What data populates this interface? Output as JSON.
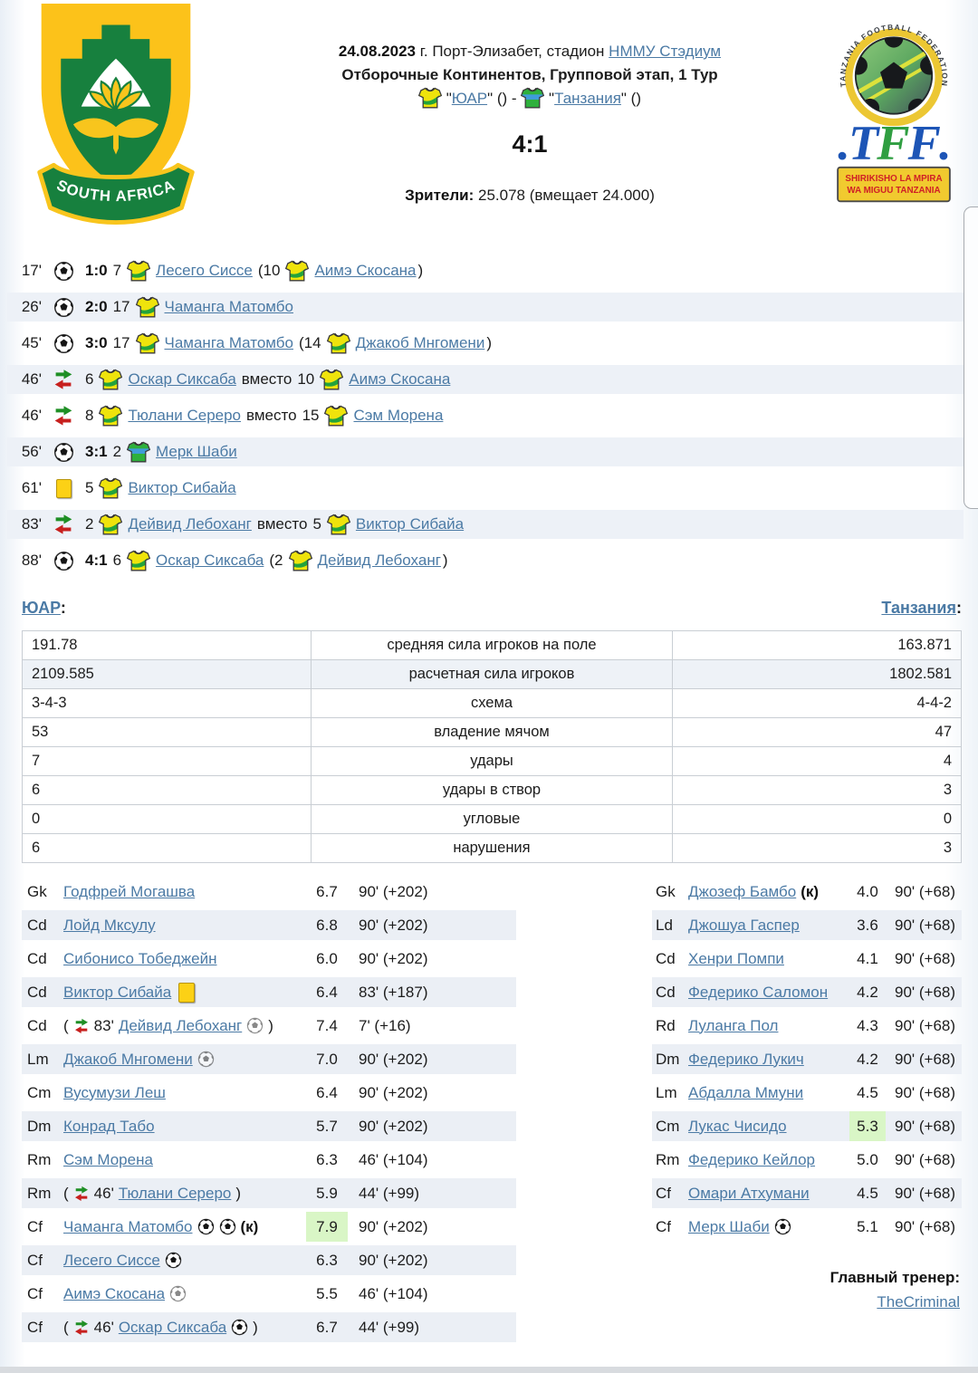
{
  "logos": {
    "home_banner": "SOUTH AFRICA",
    "tff_arc": "TANZANIA FOOTBALL FEDERATION",
    "tff_dot1": ".",
    "tff_t": "T",
    "tff_f1": "F",
    "tff_f2": "F",
    "tff_dot2": ".",
    "tff_banner_line1": "SHIRIKISHO LA MPIRA",
    "tff_banner_line2": "WA MIGUU TANZANIA"
  },
  "header": {
    "date": "24.08.2023",
    "venue": "г. Порт-Элизабет, стадион",
    "stadium": "НММУ Стэдиум",
    "competition": "Отборочные Континентов, Групповой этап, 1 Тур",
    "quote_open_home": "\"",
    "home": "ЮАР",
    "home_close": "\" ()",
    "separator": "-",
    "quote_open_away": "\"",
    "away": "Танзания",
    "away_close": "\" ()",
    "score": "4:1",
    "attendance_label": "Зрители:",
    "attendance": "25.078 (вмещает 24.000)"
  },
  "labels": {
    "captain": "(к)"
  },
  "colors": {
    "accent_link": "#4b7aa5",
    "row_tint": "#ebeff5",
    "best_rating_highlight": "#d9f6c6",
    "yellow_card": "#fcd116",
    "home_shirt": "#efe30c",
    "away_shirt": "#2eb03c"
  },
  "events": [
    {
      "minute": "17'",
      "type": "goal",
      "score": "1:0",
      "number": "7",
      "team": "home",
      "player": "Лесего Сиссе",
      "related": {
        "kind": "assist",
        "number": "10",
        "team": "home",
        "player": "Аимэ Скосана"
      }
    },
    {
      "minute": "26'",
      "type": "goal",
      "score": "2:0",
      "number": "17",
      "team": "home",
      "player": "Чаманга Матомбо",
      "related": null
    },
    {
      "minute": "45'",
      "type": "goal",
      "score": "3:0",
      "number": "17",
      "team": "home",
      "player": "Чаманга Матомбо",
      "related": {
        "kind": "assist",
        "number": "14",
        "team": "home",
        "player": "Джакоб Мнгомени"
      }
    },
    {
      "minute": "46'",
      "type": "substitution",
      "score": null,
      "number": "6",
      "team": "home",
      "player": "Оскар Сиксаба",
      "related": {
        "kind": "replaced",
        "label": "вместо",
        "number": "10",
        "team": "home",
        "player": "Аимэ Скосана"
      }
    },
    {
      "minute": "46'",
      "type": "substitution",
      "score": null,
      "number": "8",
      "team": "home",
      "player": "Тюлани Сереро",
      "related": {
        "kind": "replaced",
        "label": "вместо",
        "number": "15",
        "team": "home",
        "player": "Сэм Морена"
      }
    },
    {
      "minute": "56'",
      "type": "goal",
      "score": "3:1",
      "number": "2",
      "team": "away",
      "player": "Мерк Шаби",
      "related": null
    },
    {
      "minute": "61'",
      "type": "yellow-card",
      "score": null,
      "number": "5",
      "team": "home",
      "player": "Виктор Сибайа",
      "related": null
    },
    {
      "minute": "83'",
      "type": "substitution",
      "score": null,
      "number": "2",
      "team": "home",
      "player": "Дейвид Лебоханг",
      "related": {
        "kind": "replaced",
        "label": "вместо",
        "number": "5",
        "team": "home",
        "player": "Виктор Сибайа"
      }
    },
    {
      "minute": "88'",
      "type": "goal",
      "score": "4:1",
      "number": "6",
      "team": "home",
      "player": "Оскар Сиксаба",
      "related": {
        "kind": "assist",
        "number": "2",
        "team": "home",
        "player": "Дейвид Лебоханг"
      }
    }
  ],
  "teams_row": {
    "home": "ЮАР",
    "away": "Танзания",
    "colon": ":"
  },
  "stats": [
    {
      "home": "191.78",
      "label": "средняя сила игроков на поле",
      "away": "163.871",
      "tinted": false
    },
    {
      "home": "2109.585",
      "label": "расчетная сила игроков",
      "away": "1802.581",
      "tinted": true
    },
    {
      "home": "3-4-3",
      "label": "схема",
      "away": "4-4-2",
      "tinted": false
    },
    {
      "home": "53",
      "label": "владение мячом",
      "away": "47",
      "tinted": false
    },
    {
      "home": "7",
      "label": "удары",
      "away": "4",
      "tinted": false
    },
    {
      "home": "6",
      "label": "удары в створ",
      "away": "3",
      "tinted": false
    },
    {
      "home": "0",
      "label": "угловые",
      "away": "0",
      "tinted": false
    },
    {
      "home": "6",
      "label": "нарушения",
      "away": "3",
      "tinted": false
    }
  ],
  "lineups": {
    "home": [
      {
        "pos": "Gk",
        "name": "Годфрей Могашва",
        "rating": "6.7",
        "time": "90' (+202)"
      },
      {
        "pos": "Cd",
        "name": "Лойд Мксулу",
        "rating": "6.8",
        "time": "90' (+202)"
      },
      {
        "pos": "Cd",
        "name": "Сибонисо Тобеджейн",
        "rating": "6.0",
        "time": "90' (+202)"
      },
      {
        "pos": "Cd",
        "name": "Виктор Сибайа",
        "icons": [
          "yellow-card"
        ],
        "rating": "6.4",
        "time": "83' (+187)"
      },
      {
        "pos": "Cd",
        "sub_minute": "83'",
        "name": "Дейвид Лебоханг",
        "icons": [
          "assist"
        ],
        "rating": "7.4",
        "time": "7' (+16)"
      },
      {
        "pos": "Lm",
        "name": "Джакоб Мнгомени",
        "icons": [
          "assist"
        ],
        "rating": "7.0",
        "time": "90' (+202)"
      },
      {
        "pos": "Cm",
        "name": "Вусумузи Леш",
        "rating": "6.4",
        "time": "90' (+202)"
      },
      {
        "pos": "Dm",
        "name": "Конрад Табо",
        "rating": "5.7",
        "time": "90' (+202)"
      },
      {
        "pos": "Rm",
        "name": "Сэм Морена",
        "rating": "6.3",
        "time": "46' (+104)"
      },
      {
        "pos": "Rm",
        "sub_minute": "46'",
        "name": "Тюлани Сереро",
        "rating": "5.9",
        "time": "44' (+99)"
      },
      {
        "pos": "Cf",
        "name": "Чаманга Матомбо",
        "icons": [
          "goal",
          "goal"
        ],
        "captain": true,
        "rating": "7.9",
        "best": true,
        "time": "90' (+202)"
      },
      {
        "pos": "Cf",
        "name": "Лесего Сиссе",
        "icons": [
          "goal"
        ],
        "rating": "6.3",
        "time": "90' (+202)"
      },
      {
        "pos": "Cf",
        "name": "Аимэ Скосана",
        "icons": [
          "assist"
        ],
        "rating": "5.5",
        "time": "46' (+104)"
      },
      {
        "pos": "Cf",
        "sub_minute": "46'",
        "name": "Оскар Сиксаба",
        "icons": [
          "goal"
        ],
        "rating": "6.7",
        "time": "44' (+99)"
      }
    ],
    "away": [
      {
        "pos": "Gk",
        "name": "Джозеф Бамбо",
        "captain": true,
        "rating": "4.0",
        "time": "90' (+68)"
      },
      {
        "pos": "Ld",
        "name": "Джошуа Гаспер",
        "rating": "3.6",
        "time": "90' (+68)"
      },
      {
        "pos": "Cd",
        "name": "Хенри Помпи",
        "rating": "4.1",
        "time": "90' (+68)"
      },
      {
        "pos": "Cd",
        "name": "Федерико Саломон",
        "rating": "4.2",
        "time": "90' (+68)"
      },
      {
        "pos": "Rd",
        "name": "Луланга Пол",
        "rating": "4.3",
        "time": "90' (+68)"
      },
      {
        "pos": "Dm",
        "name": "Федерико Лукич",
        "rating": "4.2",
        "time": "90' (+68)"
      },
      {
        "pos": "Lm",
        "name": "Абдалла Ммуни",
        "rating": "4.5",
        "time": "90' (+68)"
      },
      {
        "pos": "Cm",
        "name": "Лукас Чисидо",
        "rating": "5.3",
        "best": true,
        "time": "90' (+68)"
      },
      {
        "pos": "Rm",
        "name": "Федерико Кейлор",
        "rating": "5.0",
        "time": "90' (+68)"
      },
      {
        "pos": "Cf",
        "name": "Омари Атхумани",
        "rating": "4.5",
        "time": "90' (+68)"
      },
      {
        "pos": "Cf",
        "name": "Мерк Шаби",
        "icons": [
          "goal"
        ],
        "rating": "5.1",
        "time": "90' (+68)"
      }
    ]
  },
  "coach": {
    "label": "Главный тренер:",
    "name": "TheCriminal"
  }
}
